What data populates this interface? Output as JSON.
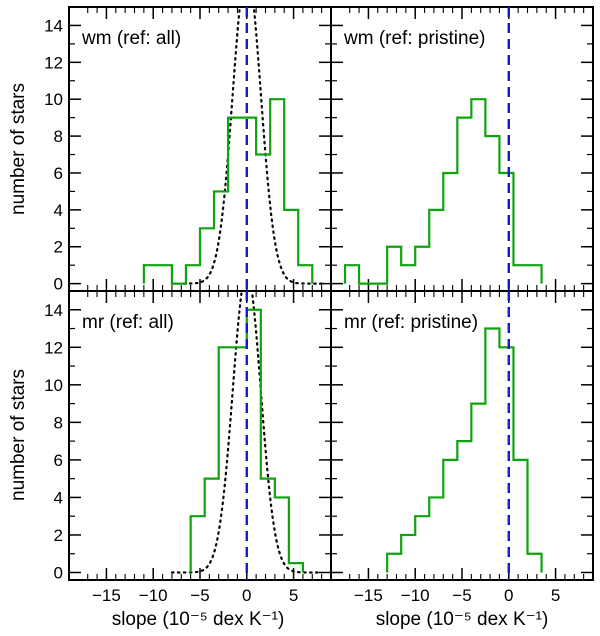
{
  "chart_data": {
    "type": "histogram-grid",
    "shared": {
      "xlabel": "slope (10⁻⁵ dex K⁻¹)",
      "ylabel": "number of stars",
      "xlim": [
        -19,
        9
      ],
      "ylim": [
        -0.4,
        15
      ],
      "xticks": [
        -15,
        -10,
        -5,
        0,
        5
      ],
      "xtick_labels": [
        "−15",
        "−10",
        "−5",
        "0",
        "5"
      ],
      "yticks": [
        0,
        2,
        4,
        6,
        8,
        10,
        12,
        14
      ],
      "yticks_top": [
        0,
        2,
        4,
        6,
        8,
        10,
        12,
        14
      ],
      "zero_line_x": 0,
      "colors": {
        "hist": "#0fa30f",
        "zero_line": "#1717d6",
        "dotted": "#000000",
        "axes": "#000000"
      }
    },
    "panels": [
      {
        "id": "wm-all",
        "title": "wm (ref: all)",
        "row": 0,
        "col": 0,
        "bin_width": 1.5,
        "steps": [
          [
            -11,
            0,
            1
          ],
          [
            -9.5,
            0,
            1
          ],
          [
            -8,
            0,
            0
          ],
          [
            -6.5,
            0,
            1
          ],
          [
            -5,
            0,
            3
          ],
          [
            -3.5,
            0,
            5
          ],
          [
            -2,
            0,
            9
          ],
          [
            1,
            0,
            7
          ],
          [
            2.5,
            0,
            10
          ],
          [
            4,
            0,
            4
          ],
          [
            5.5,
            0,
            1
          ],
          [
            7,
            0,
            0
          ]
        ],
        "hist_edges": [
          -11,
          -9.5,
          -8,
          -6.5,
          -5,
          -3.5,
          -2,
          -0.5,
          1,
          2.5,
          4,
          5.5,
          7
        ],
        "hist_counts": [
          1,
          1,
          0,
          1,
          3,
          5,
          9,
          9,
          7,
          10,
          4,
          1
        ],
        "gaussian": {
          "mean": 0,
          "sigma": 1.5,
          "peak": 17
        }
      },
      {
        "id": "wm-pristine",
        "title": "wm (ref: pristine)",
        "row": 0,
        "col": 1,
        "hist_edges": [
          -17.5,
          -16,
          -14.5,
          -13,
          -11.5,
          -10,
          -8.5,
          -7,
          -5.5,
          -4,
          -2.5,
          -1,
          0.5,
          2,
          3.5
        ],
        "hist_counts": [
          1,
          0,
          0,
          2,
          1,
          2,
          4,
          6,
          9,
          10,
          8,
          6,
          1,
          1
        ],
        "clip_zero_at": 0
      },
      {
        "id": "mr-all",
        "title": "mr (ref: all)",
        "row": 1,
        "col": 0,
        "hist_edges": [
          -6,
          -4.5,
          -3,
          -1.5,
          0,
          1.5,
          3,
          4.5,
          6
        ],
        "hist_counts": [
          3,
          5,
          12,
          12,
          14,
          5,
          4,
          0.5
        ],
        "gaussian": {
          "mean": 0,
          "sigma": 1.5,
          "peak": 16
        }
      },
      {
        "id": "mr-pristine",
        "title": "mr (ref: pristine)",
        "row": 1,
        "col": 1,
        "hist_edges": [
          -13,
          -11.5,
          -10,
          -8.5,
          -7,
          -5.5,
          -4,
          -2.5,
          -1,
          0.5,
          2,
          3.5
        ],
        "hist_counts": [
          1,
          2,
          3,
          4,
          6,
          7,
          9,
          13,
          12,
          6,
          1
        ],
        "clip_zero_at": 0
      }
    ]
  }
}
